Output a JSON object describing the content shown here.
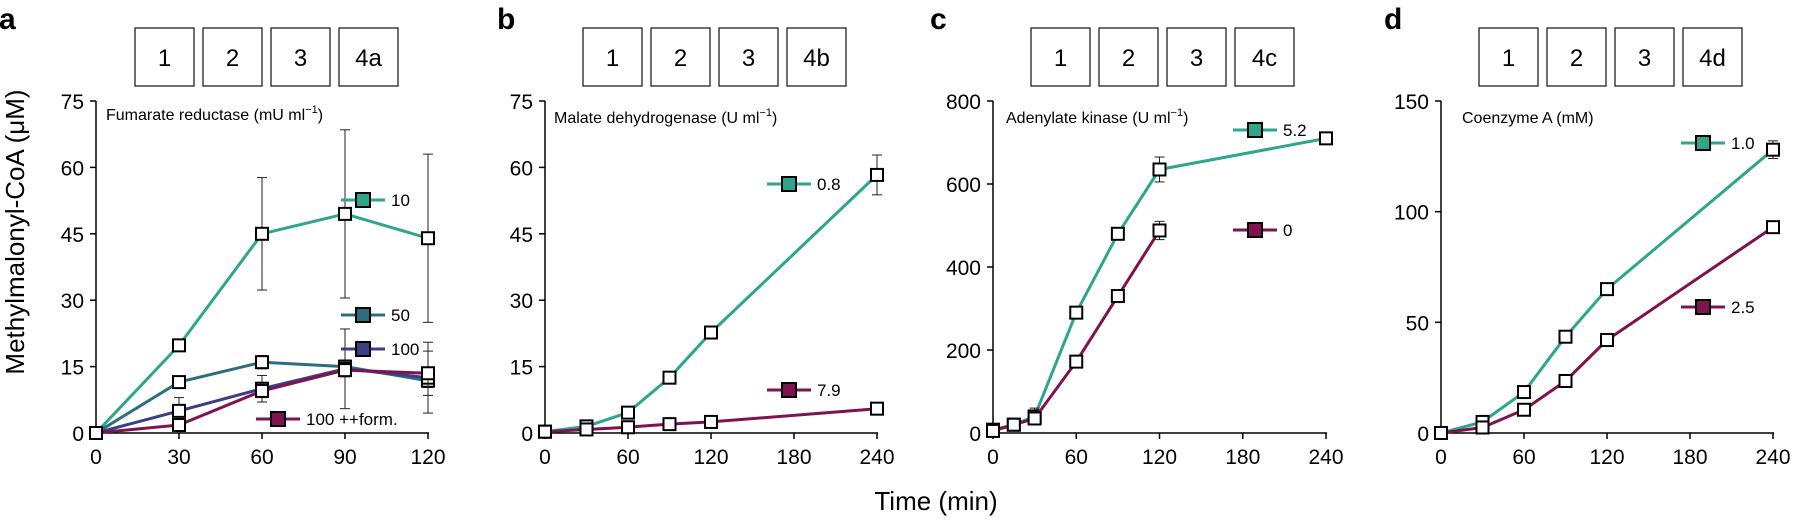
{
  "figure": {
    "ylabel": "Methylmalonyl-CoA (μM)",
    "xlabel": "Time (min)",
    "colors": {
      "green": "#2fa58a",
      "teal": "#2b6e80",
      "navy": "#3b3d85",
      "maroon": "#7e1350",
      "axis": "#000000"
    }
  },
  "chart_data": [
    {
      "panel": "a",
      "type": "line",
      "step_boxes": [
        "1",
        "2",
        "3",
        "4a"
      ],
      "legend_title": "Fumarate reductase (mU ml",
      "legend_title_sup": "−1",
      "legend_title_end": ")",
      "xlim": [
        0,
        120
      ],
      "xticks": [
        0,
        30,
        60,
        90,
        120
      ],
      "ylim": [
        0,
        75
      ],
      "yticks": [
        0,
        15,
        30,
        45,
        60,
        75
      ],
      "series": [
        {
          "name": "10",
          "color": "green",
          "x": [
            0,
            30,
            60,
            90,
            120
          ],
          "y": [
            0,
            19.8,
            45,
            49.5,
            44
          ],
          "err": [
            0,
            0,
            12.7,
            19,
            19
          ]
        },
        {
          "name": "50",
          "color": "teal",
          "x": [
            0,
            30,
            60,
            90,
            120
          ],
          "y": [
            0,
            11.5,
            16,
            15,
            11.8
          ],
          "err": [
            0,
            1.2,
            1.5,
            1.5,
            1.5
          ]
        },
        {
          "name": "100",
          "color": "navy",
          "x": [
            0,
            30,
            60,
            90,
            120
          ],
          "y": [
            0,
            5,
            10,
            14.5,
            12.5
          ],
          "err": [
            0,
            3,
            3,
            9,
            8
          ]
        },
        {
          "name": "100 ++form.",
          "color": "maroon",
          "x": [
            0,
            30,
            60,
            90,
            120
          ],
          "y": [
            0,
            1.8,
            9.5,
            14.2,
            13.5
          ],
          "err": [
            0,
            1,
            1.5,
            1.5,
            5
          ]
        }
      ]
    },
    {
      "panel": "b",
      "type": "line",
      "step_boxes": [
        "1",
        "2",
        "3",
        "4b"
      ],
      "legend_title": "Malate dehydrogenase (U ml",
      "legend_title_sup": "−1",
      "legend_title_end": ")",
      "xlim": [
        0,
        240
      ],
      "xticks": [
        0,
        60,
        120,
        180,
        240
      ],
      "ylim": [
        0,
        75
      ],
      "yticks": [
        0,
        15,
        30,
        45,
        60,
        75
      ],
      "series": [
        {
          "name": "0.8",
          "color": "green",
          "x": [
            0,
            30,
            60,
            90,
            120,
            240
          ],
          "y": [
            0.3,
            1.5,
            4.6,
            12.5,
            22.7,
            58.3
          ],
          "err": [
            0,
            0,
            0.5,
            0.5,
            0.5,
            4.5
          ]
        },
        {
          "name": "7.9",
          "color": "maroon",
          "x": [
            0,
            30,
            60,
            90,
            120,
            240
          ],
          "y": [
            0.3,
            0.8,
            1.3,
            2,
            2.5,
            5.5
          ],
          "err": [
            0,
            0,
            0,
            0,
            0,
            0
          ]
        }
      ]
    },
    {
      "panel": "c",
      "type": "line",
      "step_boxes": [
        "1",
        "2",
        "3",
        "4c"
      ],
      "legend_title": "Adenylate kinase (U ml",
      "legend_title_sup": "−1",
      "legend_title_end": ")",
      "xlim": [
        0,
        240
      ],
      "xticks": [
        0,
        60,
        120,
        180,
        240
      ],
      "ylim": [
        0,
        800
      ],
      "yticks": [
        0,
        200,
        400,
        600,
        800
      ],
      "series": [
        {
          "name": "5.2",
          "color": "green",
          "x": [
            0,
            15,
            30,
            60,
            90,
            120,
            240
          ],
          "y": [
            8,
            20,
            40,
            290,
            480,
            635,
            710
          ],
          "err": [
            0,
            0,
            20,
            0,
            0,
            30,
            0
          ]
        },
        {
          "name": "0",
          "color": "maroon",
          "x": [
            0,
            15,
            30,
            60,
            90,
            120
          ],
          "y": [
            5,
            20,
            35,
            172,
            330,
            488
          ],
          "err": [
            0,
            0,
            0,
            0,
            0,
            22
          ]
        }
      ]
    },
    {
      "panel": "d",
      "type": "line",
      "step_boxes": [
        "1",
        "2",
        "3",
        "4d"
      ],
      "legend_title": "Coenzyme A (mM)",
      "legend_title_sup": "",
      "legend_title_end": "",
      "xlim": [
        0,
        240
      ],
      "xticks": [
        0,
        60,
        120,
        180,
        240
      ],
      "ylim": [
        0,
        150
      ],
      "yticks": [
        0,
        50,
        100,
        150
      ],
      "series": [
        {
          "name": "1.0",
          "color": "green",
          "x": [
            0,
            30,
            60,
            90,
            120,
            240
          ],
          "y": [
            0,
            5,
            18.5,
            43.5,
            65,
            128
          ],
          "err": [
            0,
            0,
            0,
            0,
            1.5,
            4
          ]
        },
        {
          "name": "2.5",
          "color": "maroon",
          "x": [
            0,
            30,
            60,
            90,
            120,
            240
          ],
          "y": [
            0,
            2.5,
            10.5,
            23.5,
            42,
            93
          ],
          "err": [
            0,
            0,
            0,
            0,
            0,
            0
          ]
        }
      ]
    }
  ]
}
